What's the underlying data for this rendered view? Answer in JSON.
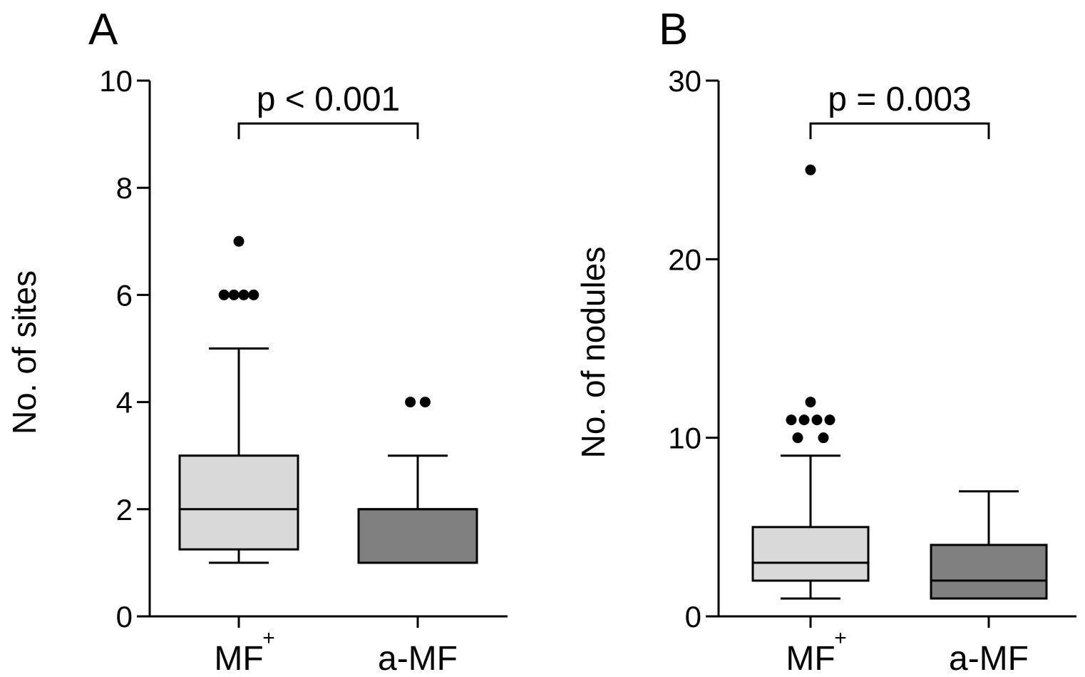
{
  "chart_data": [
    {
      "type": "boxplot",
      "panel_label": "A",
      "ylabel": "No. of sites",
      "ylim": [
        0,
        10
      ],
      "yticks": [
        0,
        2,
        4,
        6,
        8,
        10
      ],
      "categories": [
        {
          "name": "MF",
          "superscript": "+"
        },
        {
          "name": "a-MF",
          "superscript": ""
        }
      ],
      "boxes": [
        {
          "category": "MF+",
          "whisker_low": 1,
          "q1": 1.25,
          "median": 2,
          "q3": 3,
          "whisker_high": 5,
          "color": "#d9d9d9",
          "outliers": [
            [
              -0.4,
              6
            ],
            [
              -0.133,
              6
            ],
            [
              0.133,
              6
            ],
            [
              0.4,
              6
            ],
            [
              0,
              7
            ]
          ]
        },
        {
          "category": "a-MF",
          "whisker_low": 1,
          "q1": 1,
          "median": 2,
          "q3": 2,
          "whisker_high": 3,
          "color": "#808080",
          "outliers": [
            [
              -0.2,
              4
            ],
            [
              0.2,
              4
            ]
          ]
        }
      ],
      "annotation": {
        "text": "p < 0.001",
        "between": [
          0,
          1
        ],
        "level": 9.2
      }
    },
    {
      "type": "boxplot",
      "panel_label": "B",
      "ylabel": "No. of nodules",
      "ylim": [
        0,
        30
      ],
      "yticks": [
        0,
        10,
        20,
        30
      ],
      "categories": [
        {
          "name": "MF",
          "superscript": "+"
        },
        {
          "name": "a-MF",
          "superscript": ""
        }
      ],
      "boxes": [
        {
          "category": "MF+",
          "whisker_low": 1,
          "q1": 2,
          "median": 3,
          "q3": 5,
          "whisker_high": 9,
          "color": "#d9d9d9",
          "outliers": [
            [
              -0.4,
              10
            ],
            [
              0.4,
              10
            ],
            [
              -0.6,
              11
            ],
            [
              -0.2,
              11
            ],
            [
              0.2,
              11
            ],
            [
              0.6,
              11
            ],
            [
              0,
              12
            ],
            [
              0,
              25
            ]
          ]
        },
        {
          "category": "a-MF",
          "whisker_low": 1,
          "q1": 1,
          "median": 2,
          "q3": 4,
          "whisker_high": 7,
          "color": "#808080",
          "outliers": []
        }
      ],
      "annotation": {
        "text": "p = 0.003",
        "between": [
          0,
          1
        ],
        "level": 27.6
      }
    }
  ]
}
